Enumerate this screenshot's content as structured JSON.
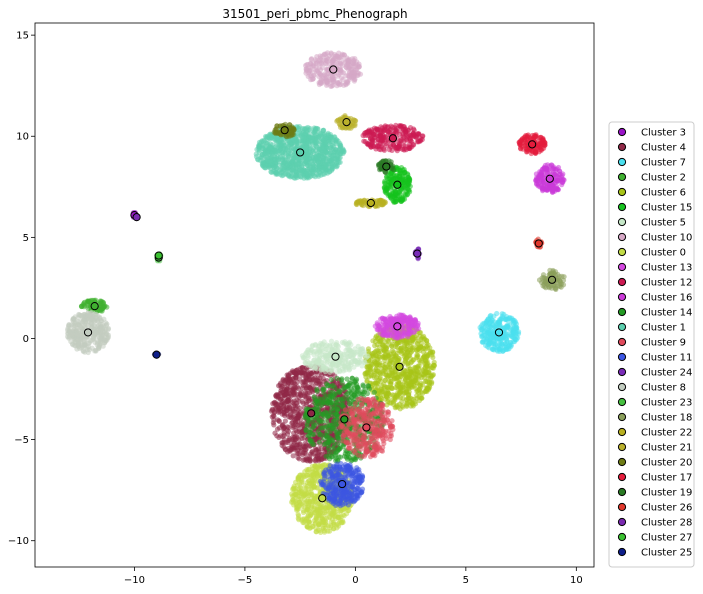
{
  "chart_data": {
    "type": "scatter",
    "title": "31501_peri_pbmc_Phenograph",
    "xlabel": "",
    "ylabel": "",
    "xlim": [
      -14.5,
      10.8
    ],
    "ylim": [
      -11.3,
      15.6
    ],
    "xticks": [
      -10,
      -5,
      0,
      5,
      10
    ],
    "yticks": [
      -10,
      -5,
      0,
      5,
      10,
      15
    ],
    "grid": false,
    "legend_position": "right",
    "clusters": [
      {
        "name": "Cluster 3",
        "color": "#9a14c8",
        "cx": -10.0,
        "cy": 6.1,
        "rx": 0.12,
        "ry": 0.15,
        "n": 10,
        "a": 0
      },
      {
        "name": "Cluster 4",
        "color": "#8f2847",
        "cx": -2.0,
        "cy": -3.7,
        "rx": 1.8,
        "ry": 2.4,
        "n": 900,
        "a": 0
      },
      {
        "name": "Cluster 7",
        "color": "#4ae0ef",
        "cx": 6.5,
        "cy": 0.3,
        "rx": 0.9,
        "ry": 0.95,
        "n": 260,
        "a": 0
      },
      {
        "name": "Cluster 2",
        "color": "#40b030",
        "cx": -11.8,
        "cy": 1.6,
        "rx": 0.6,
        "ry": 0.3,
        "n": 70,
        "a": 0
      },
      {
        "name": "Cluster 6",
        "color": "#a8c418",
        "cx": 2.0,
        "cy": -1.4,
        "rx": 1.6,
        "ry": 2.1,
        "n": 700,
        "a": 0
      },
      {
        "name": "Cluster 15",
        "color": "#16c21e",
        "cx": 1.9,
        "cy": 7.6,
        "rx": 0.6,
        "ry": 0.9,
        "n": 200,
        "a": 0
      },
      {
        "name": "Cluster 5",
        "color": "#c6e8c8",
        "cx": -0.9,
        "cy": -0.9,
        "rx": 1.5,
        "ry": 0.8,
        "n": 240,
        "a": 0
      },
      {
        "name": "Cluster 10",
        "color": "#d6a8c6",
        "cx": -1.0,
        "cy": 13.3,
        "rx": 1.3,
        "ry": 0.85,
        "n": 260,
        "a": 0
      },
      {
        "name": "Cluster 0",
        "color": "#c2dc46",
        "cx": -1.5,
        "cy": -7.9,
        "rx": 1.4,
        "ry": 1.7,
        "n": 600,
        "a": 0
      },
      {
        "name": "Cluster 13",
        "color": "#d448e0",
        "cx": 1.9,
        "cy": 0.6,
        "rx": 1.0,
        "ry": 0.6,
        "n": 220,
        "a": 0
      },
      {
        "name": "Cluster 12",
        "color": "#cc1a52",
        "cx": 1.7,
        "cy": 9.9,
        "rx": 1.4,
        "ry": 0.65,
        "n": 230,
        "a": 0
      },
      {
        "name": "Cluster 16",
        "color": "#cb3ad8",
        "cx": 8.8,
        "cy": 7.9,
        "rx": 0.65,
        "ry": 0.7,
        "n": 170,
        "a": 0
      },
      {
        "name": "Cluster 14",
        "color": "#249a24",
        "cx": -0.5,
        "cy": -4.0,
        "rx": 1.8,
        "ry": 2.1,
        "n": 500,
        "a": 0
      },
      {
        "name": "Cluster 1",
        "color": "#5ccfae",
        "cx": -2.5,
        "cy": 9.2,
        "rx": 2.0,
        "ry": 1.3,
        "n": 900,
        "a": 0
      },
      {
        "name": "Cluster 9",
        "color": "#e04a5c",
        "cx": 0.5,
        "cy": -4.4,
        "rx": 1.2,
        "ry": 1.5,
        "n": 300,
        "a": 0
      },
      {
        "name": "Cluster 11",
        "color": "#3c56e2",
        "cx": -0.6,
        "cy": -7.2,
        "rx": 1.0,
        "ry": 1.1,
        "n": 300,
        "a": 0
      },
      {
        "name": "Cluster 24",
        "color": "#7a2cb8",
        "cx": 2.8,
        "cy": 4.2,
        "rx": 0.12,
        "ry": 0.3,
        "n": 16,
        "a": 0
      },
      {
        "name": "Cluster 8",
        "color": "#c2ccc0",
        "cx": -12.1,
        "cy": 0.3,
        "rx": 0.95,
        "ry": 1.0,
        "n": 300,
        "a": 0
      },
      {
        "name": "Cluster 23",
        "color": "#46c040",
        "cx": -8.9,
        "cy": 4.0,
        "rx": 0.12,
        "ry": 0.2,
        "n": 10,
        "a": 0
      },
      {
        "name": "Cluster 18",
        "color": "#8a9e5a",
        "cx": 8.9,
        "cy": 2.9,
        "rx": 0.6,
        "ry": 0.5,
        "n": 70,
        "a": 0
      },
      {
        "name": "Cluster 22",
        "color": "#b8b020",
        "cx": 0.7,
        "cy": 6.7,
        "rx": 0.7,
        "ry": 0.18,
        "n": 70,
        "a": 0
      },
      {
        "name": "Cluster 21",
        "color": "#bab02c",
        "cx": -0.4,
        "cy": 10.7,
        "rx": 0.45,
        "ry": 0.35,
        "n": 50,
        "a": 0
      },
      {
        "name": "Cluster 20",
        "color": "#6e7c14",
        "cx": -3.2,
        "cy": 10.3,
        "rx": 0.5,
        "ry": 0.35,
        "n": 60,
        "a": 0
      },
      {
        "name": "Cluster 17",
        "color": "#e41c3c",
        "cx": 8.0,
        "cy": 9.6,
        "rx": 0.6,
        "ry": 0.5,
        "n": 120,
        "a": 0
      },
      {
        "name": "Cluster 19",
        "color": "#2a7a24",
        "cx": 1.4,
        "cy": 8.5,
        "rx": 0.4,
        "ry": 0.3,
        "n": 40,
        "a": 0
      },
      {
        "name": "Cluster 26",
        "color": "#e0382c",
        "cx": 8.3,
        "cy": 4.7,
        "rx": 0.15,
        "ry": 0.22,
        "n": 14,
        "a": 0
      },
      {
        "name": "Cluster 28",
        "color": "#7a2ab0",
        "cx": -9.9,
        "cy": 6.0,
        "rx": 0.08,
        "ry": 0.08,
        "n": 4,
        "a": 0
      },
      {
        "name": "Cluster 27",
        "color": "#3ac030",
        "cx": -8.9,
        "cy": 4.1,
        "rx": 0.08,
        "ry": 0.08,
        "n": 4,
        "a": 0
      },
      {
        "name": "Cluster 25",
        "color": "#0e1e8a",
        "cx": -9.0,
        "cy": -0.8,
        "rx": 0.1,
        "ry": 0.1,
        "n": 4,
        "a": 0
      }
    ]
  }
}
